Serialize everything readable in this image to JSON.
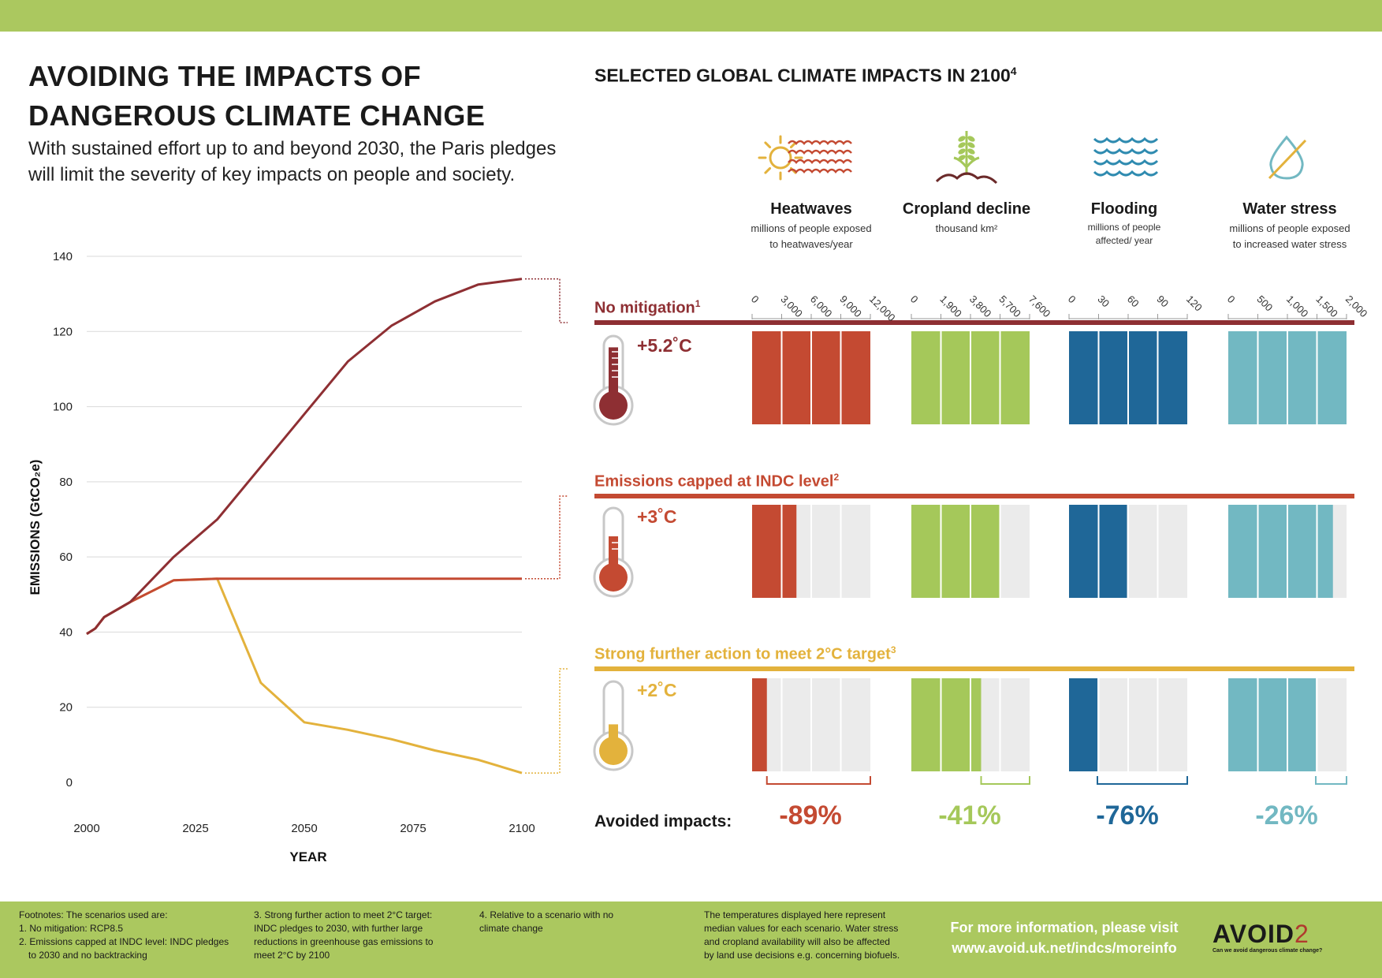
{
  "title_lines": [
    "AVOIDING THE IMPACTS OF",
    "DANGEROUS CLIMATE CHANGE"
  ],
  "subtitle_lines": [
    "With sustained effort up to and beyond 2030, the Paris pledges",
    "will limit the severity of key impacts on people and society."
  ],
  "impacts_title": "SELECTED GLOBAL CLIMATE IMPACTS IN 2100",
  "impacts_title_sup": "4",
  "categories": [
    {
      "name": "Heatwaves",
      "unit_lines": [
        "millions of people exposed",
        "to heatwaves/year"
      ],
      "ticks": [
        "0",
        "3,000",
        "6,000",
        "9,000",
        "12,000"
      ],
      "max": 12000,
      "color": "#c44a32",
      "icon": "heatwave-icon"
    },
    {
      "name": "Cropland decline",
      "unit_lines": [
        "thousand km²"
      ],
      "ticks": [
        "0",
        "1,900",
        "3,800",
        "5,700",
        "7,600"
      ],
      "max": 7600,
      "color": "#a5c85a",
      "icon": "crop-icon"
    },
    {
      "name": "Flooding",
      "unit_lines": [
        "millions of people",
        "affected/ year"
      ],
      "ticks": [
        "0",
        "30",
        "60",
        "90",
        "120"
      ],
      "max": 120,
      "color": "#1f6798",
      "icon": "waves-icon"
    },
    {
      "name": "Water stress",
      "unit_lines": [
        "millions of people exposed",
        "to increased water stress"
      ],
      "ticks": [
        "0",
        "500",
        "1,000",
        "1,500",
        "2,000"
      ],
      "max": 2000,
      "color": "#72b8c2",
      "icon": "water-drop-icon"
    }
  ],
  "scenarios": [
    {
      "label": "No mitigation",
      "sup": "1",
      "temperature": "+5.2˚C",
      "color": "#8e2f33",
      "thermo_color": "#8e2f33",
      "fractions": [
        1.0,
        1.0,
        1.0,
        1.0
      ]
    },
    {
      "label": "Emissions capped at INDC level",
      "sup": "2",
      "temperature": "+3˚C",
      "color": "#c44a32",
      "thermo_color": "#c44a32",
      "fractions": [
        0.375,
        0.75,
        0.49,
        0.885
      ]
    },
    {
      "label": "Strong further action to meet 2°C target",
      "sup": "3",
      "temperature": "+2˚C",
      "color": "#e3b23c",
      "thermo_color": "#e3b23c",
      "fractions": [
        0.125,
        0.59,
        0.24,
        0.74
      ]
    }
  ],
  "avoided": {
    "label": "Avoided impacts:",
    "values": [
      "-89%",
      "-41%",
      "-76%",
      "-26%"
    ]
  },
  "chart_data": {
    "type": "line",
    "xlabel": "YEAR",
    "ylabel": "EMISSIONS (GtCO₂e)",
    "xlim": [
      2000,
      2100
    ],
    "ylim": [
      0,
      140
    ],
    "x_ticks": [
      "2000",
      "2025",
      "2050",
      "2075",
      "2100"
    ],
    "y_ticks": [
      "0",
      "20",
      "40",
      "60",
      "80",
      "100",
      "120",
      "140"
    ],
    "grid": true,
    "series": [
      {
        "name": "No mitigation",
        "color": "#8e2f33",
        "x": [
          2000,
          2002,
          2004,
          2010,
          2020,
          2030,
          2040,
          2050,
          2060,
          2070,
          2080,
          2090,
          2100
        ],
        "y": [
          39.5,
          41,
          44,
          48,
          60,
          70,
          84,
          98,
          112,
          121.5,
          128,
          132.5,
          134
        ]
      },
      {
        "name": "Emissions capped at INDC level",
        "color": "#c44a32",
        "x": [
          2000,
          2002,
          2004,
          2010,
          2020,
          2025,
          2030,
          2100
        ],
        "y": [
          39.5,
          41,
          44,
          48,
          53.8,
          54,
          54.2,
          54.2
        ]
      },
      {
        "name": "Strong further action to meet 2°C target",
        "color": "#e3b23c",
        "x": [
          2000,
          2002,
          2004,
          2010,
          2020,
          2025,
          2030,
          2040,
          2050,
          2060,
          2070,
          2080,
          2090,
          2100
        ],
        "y": [
          39.5,
          41,
          44,
          48,
          53.8,
          54,
          54.2,
          26.5,
          16,
          14,
          11.5,
          8.5,
          6,
          2.5
        ]
      }
    ]
  },
  "footnotes": {
    "col1": [
      "Footnotes: The scenarios used are:",
      "1. No mitigation: RCP8.5",
      "2. Emissions capped at INDC level: INDC pledges",
      "    to 2030 and no backtracking"
    ],
    "col2": [
      "3. Strong further action to meet 2°C target:",
      "INDC pledges to 2030, with further large",
      "reductions in greenhouse gas emissions to",
      "meet 2°C by 2100"
    ],
    "col3": [
      "4. Relative to a scenario with no",
      "climate change"
    ],
    "col4": [
      "The temperatures displayed here represent",
      "median values for each scenario. Water stress",
      "and cropland availability will also be affected",
      "by land use decisions e.g. concerning biofuels."
    ]
  },
  "more_info": [
    "For more information, please visit",
    "www.avoid.uk.net/indcs/moreinfo"
  ],
  "logo": {
    "word": "AVOID",
    "number": "2",
    "tagline": "Can we avoid dangerous climate change?"
  }
}
